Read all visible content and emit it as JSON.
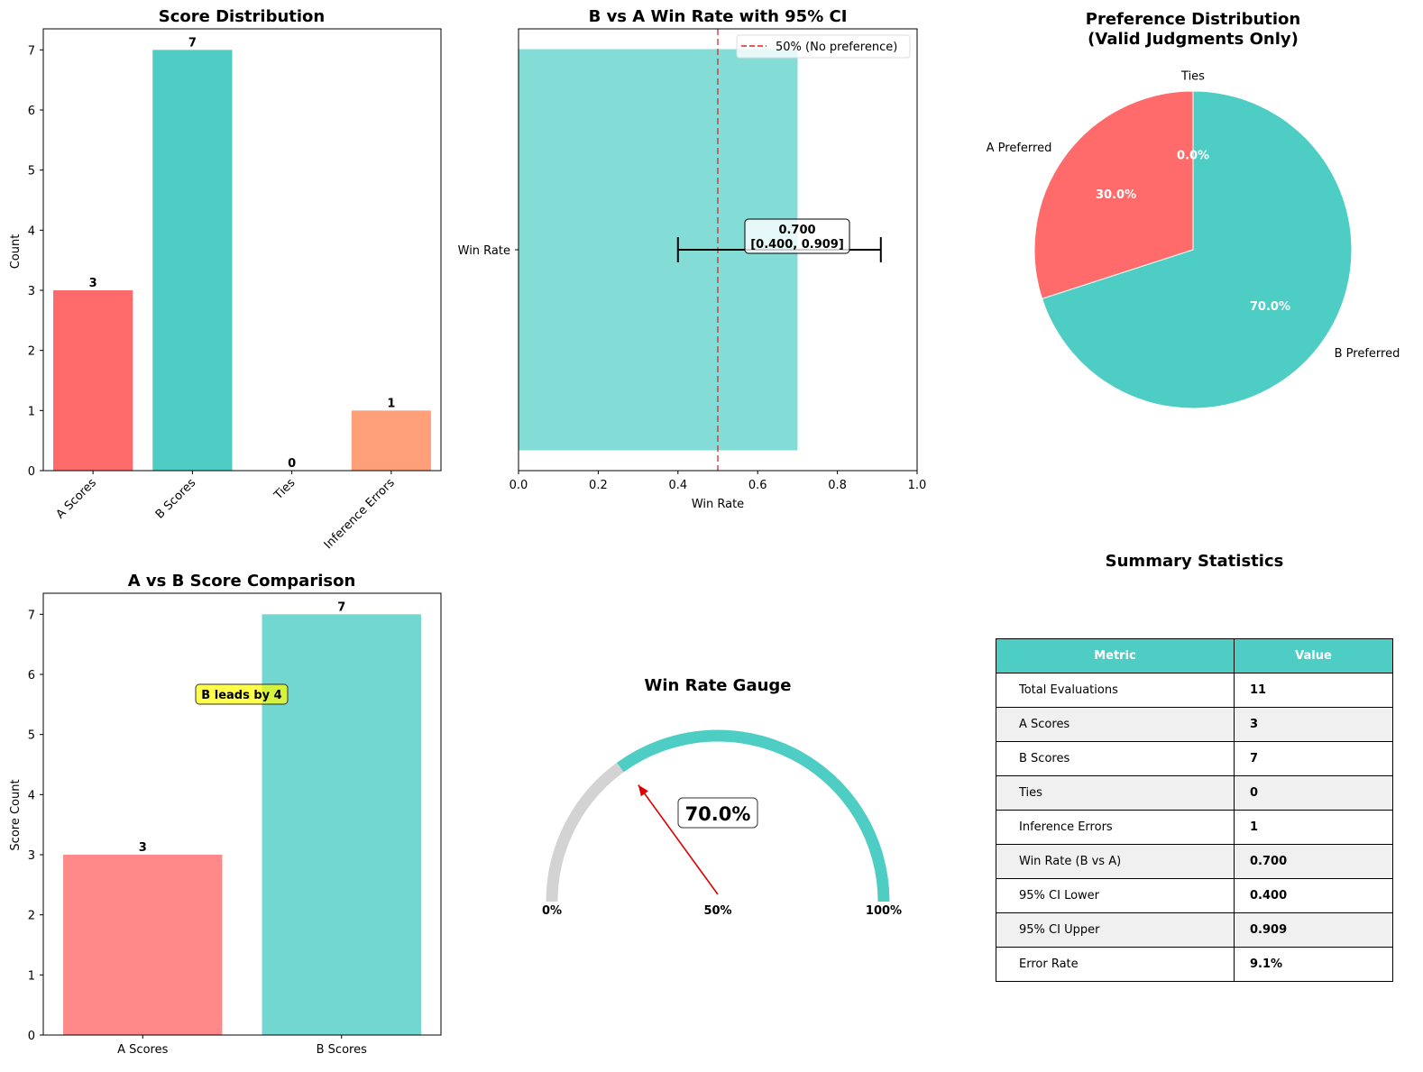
{
  "colors": {
    "a": "#ff6b6b",
    "b": "#4ecdc4",
    "ties": "#95e1d3",
    "errors": "#ffa07a",
    "gauge_bg": "#d3d3d3",
    "needle": "#dd0000",
    "ref_line": "#d62728",
    "annotation_bg": "#ffff66"
  },
  "chart_data": [
    {
      "type": "bar",
      "title": "Score Distribution",
      "xlabel": "",
      "ylabel": "Count",
      "categories": [
        "A Scores",
        "B Scores",
        "Ties",
        "Inference Errors"
      ],
      "values": [
        3,
        7,
        0,
        1
      ],
      "value_labels": [
        "3",
        "7",
        "0",
        "1"
      ],
      "ylim": [
        0,
        7.35
      ],
      "yticks": [
        0,
        1,
        2,
        3,
        4,
        5,
        6,
        7
      ],
      "ytick_labels": [
        "0",
        "1",
        "2",
        "3",
        "4",
        "5",
        "6",
        "7"
      ]
    },
    {
      "type": "bar",
      "orientation": "horizontal",
      "title": "B vs A Win Rate with 95% CI",
      "xlabel": "Win Rate",
      "ylabel": "",
      "categories": [
        "Win Rate"
      ],
      "values": [
        0.7
      ],
      "ci": [
        0.4,
        0.909
      ],
      "reference_line": 0.5,
      "legend": [
        "50% (No preference)"
      ],
      "legend_position": "top-right",
      "annotation": [
        "0.700",
        "[0.400, 0.909]"
      ],
      "xlim": [
        0,
        1
      ],
      "xticks": [
        0,
        0.2,
        0.4,
        0.6,
        0.8,
        1.0
      ],
      "xtick_labels": [
        "0.0",
        "0.2",
        "0.4",
        "0.6",
        "0.8",
        "1.0"
      ]
    },
    {
      "type": "pie",
      "title": "Preference Distribution\n(Valid Judgments Only)",
      "title_lines": [
        "Preference Distribution",
        "(Valid Judgments Only)"
      ],
      "labels": [
        "A Preferred",
        "B Preferred",
        "Ties"
      ],
      "values": [
        30.0,
        70.0,
        0.0
      ],
      "pct_labels": [
        "30.0%",
        "70.0%",
        "0.0%"
      ]
    },
    {
      "type": "bar",
      "title": "A vs B Score Comparison",
      "xlabel": "",
      "ylabel": "Score Count",
      "categories": [
        "A Scores",
        "B Scores"
      ],
      "values": [
        3,
        7
      ],
      "value_labels": [
        "3",
        "7"
      ],
      "annotation": "B leads by 4",
      "ylim": [
        0,
        7.35
      ],
      "yticks": [
        0,
        1,
        2,
        3,
        4,
        5,
        6,
        7
      ],
      "ytick_labels": [
        "0",
        "1",
        "2",
        "3",
        "4",
        "5",
        "6",
        "7"
      ]
    },
    {
      "type": "gauge",
      "title": "Win Rate Gauge",
      "value": 0.7,
      "value_label": "70.0%",
      "tick_labels": [
        "0%",
        "50%",
        "100%"
      ]
    },
    {
      "type": "table",
      "title": "Summary Statistics",
      "columns": [
        "Metric",
        "Value"
      ],
      "rows": [
        [
          "Total Evaluations",
          "11"
        ],
        [
          "A Scores",
          "3"
        ],
        [
          "B Scores",
          "7"
        ],
        [
          "Ties",
          "0"
        ],
        [
          "Inference Errors",
          "1"
        ],
        [
          "Win Rate (B vs A)",
          "0.700"
        ],
        [
          "95% CI Lower",
          "0.400"
        ],
        [
          "95% CI Upper",
          "0.909"
        ],
        [
          "Error Rate",
          "9.1%"
        ]
      ]
    }
  ]
}
